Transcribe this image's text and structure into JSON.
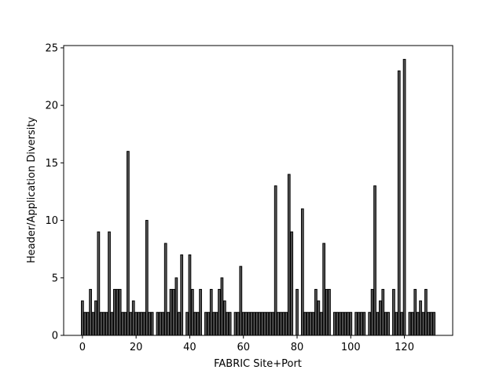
{
  "chart_data": {
    "type": "bar",
    "xlabel": "FABRIC Site+Port",
    "ylabel": "Header/Application Diversity",
    "x": [
      0,
      1,
      2,
      3,
      4,
      5,
      6,
      7,
      8,
      9,
      10,
      11,
      12,
      13,
      14,
      15,
      16,
      17,
      18,
      19,
      20,
      21,
      22,
      23,
      24,
      25,
      26,
      27,
      28,
      29,
      30,
      31,
      32,
      33,
      34,
      35,
      36,
      37,
      38,
      39,
      40,
      41,
      42,
      43,
      44,
      45,
      46,
      47,
      48,
      49,
      50,
      51,
      52,
      53,
      54,
      55,
      56,
      57,
      58,
      59,
      60,
      61,
      62,
      63,
      64,
      65,
      66,
      67,
      68,
      69,
      70,
      71,
      72,
      73,
      74,
      75,
      76,
      77,
      78,
      79,
      80,
      81,
      82,
      83,
      84,
      85,
      86,
      87,
      88,
      89,
      90,
      91,
      92,
      93,
      94,
      95,
      96,
      97,
      98,
      99,
      100,
      101,
      102,
      103,
      104,
      105,
      106,
      107,
      108,
      109,
      110,
      111,
      112,
      113,
      114,
      115,
      116,
      117,
      118,
      119,
      120,
      121,
      122,
      123,
      124,
      125,
      126,
      127,
      128,
      129,
      130,
      131
    ],
    "values": [
      3,
      2,
      2,
      4,
      2,
      3,
      9,
      2,
      2,
      2,
      9,
      2,
      4,
      4,
      4,
      2,
      2,
      16,
      2,
      3,
      2,
      2,
      2,
      2,
      10,
      2,
      2,
      0,
      2,
      2,
      2,
      8,
      2,
      4,
      4,
      5,
      2,
      7,
      0,
      2,
      7,
      4,
      2,
      2,
      4,
      0,
      2,
      2,
      4,
      2,
      2,
      4,
      5,
      3,
      2,
      2,
      0,
      2,
      2,
      6,
      2,
      2,
      2,
      2,
      2,
      2,
      2,
      2,
      2,
      2,
      2,
      2,
      13,
      2,
      2,
      2,
      2,
      14,
      9,
      0,
      4,
      0,
      11,
      2,
      2,
      2,
      2,
      4,
      3,
      2,
      8,
      4,
      4,
      0,
      2,
      2,
      2,
      2,
      2,
      2,
      2,
      0,
      2,
      2,
      2,
      2,
      0,
      2,
      4,
      13,
      2,
      3,
      4,
      2,
      2,
      0,
      4,
      2,
      23,
      2,
      24,
      0,
      2,
      2,
      4,
      2,
      3,
      2,
      4,
      2,
      2,
      2
    ],
    "color": "#595959",
    "xlim": [
      -6.99,
      137.99
    ],
    "xticks": [
      0,
      20,
      40,
      60,
      80,
      100,
      120
    ],
    "ylim": [
      0,
      25.2
    ],
    "yticks": [
      0,
      5,
      10,
      15,
      20,
      25
    ]
  }
}
